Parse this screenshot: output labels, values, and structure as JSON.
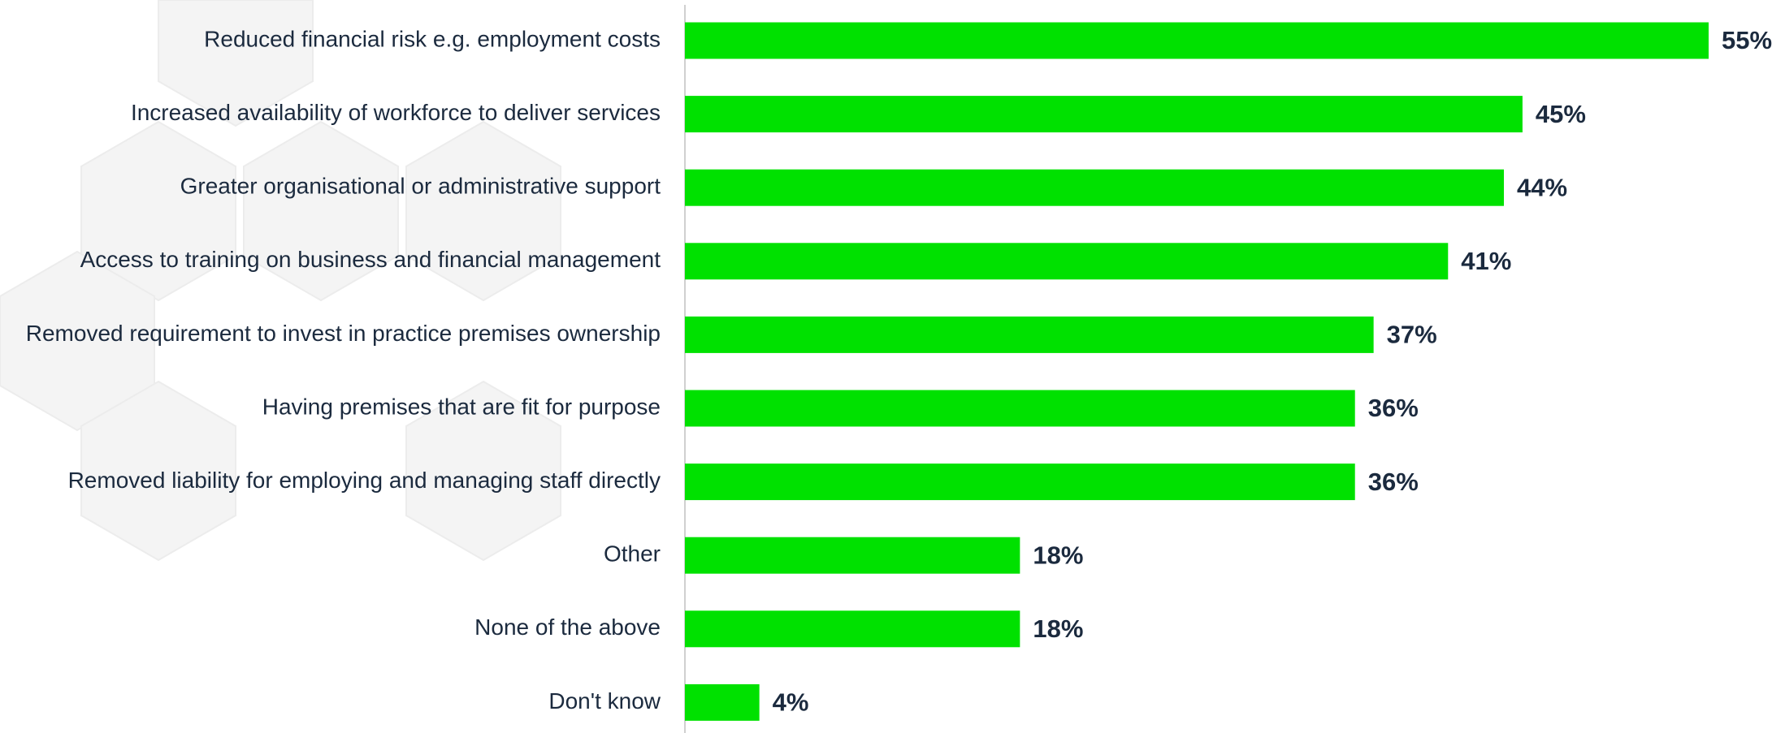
{
  "chart_data": {
    "type": "bar",
    "orientation": "horizontal",
    "categories": [
      "Reduced financial risk e.g. employment costs",
      "Increased availability of workforce to deliver services",
      "Greater organisational or administrative support",
      "Access to training on business and financial management",
      "Removed requirement to invest in practice premises ownership",
      "Having premises that are fit for purpose",
      "Removed liability for employing and managing staff directly",
      "Other",
      "None of the above",
      "Don't know"
    ],
    "values": [
      55,
      45,
      44,
      41,
      37,
      36,
      36,
      18,
      18,
      4
    ],
    "value_labels": [
      "55%",
      "45%",
      "44%",
      "41%",
      "37%",
      "36%",
      "36%",
      "18%",
      "18%",
      "4%"
    ],
    "color": "#00e100"
  }
}
